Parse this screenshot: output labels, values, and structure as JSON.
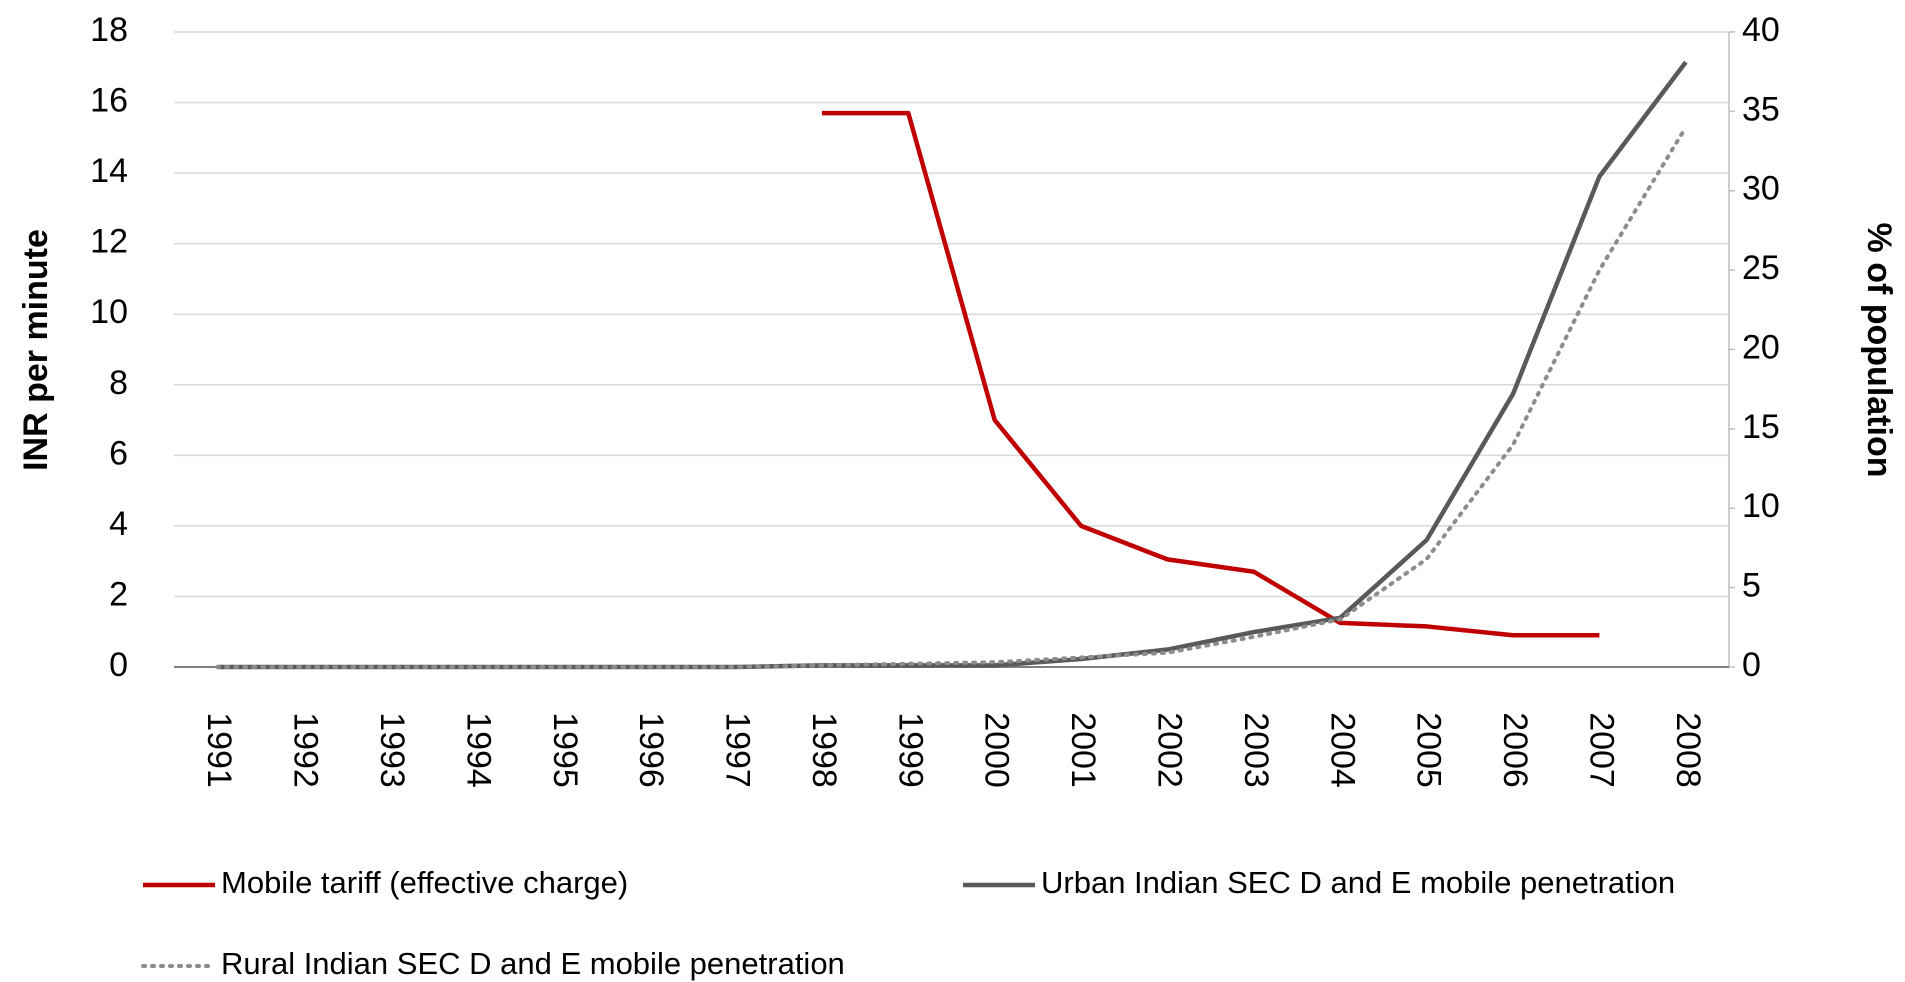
{
  "chart_data": {
    "type": "line",
    "y_label": "INR per minute",
    "y2_label": "% of  population",
    "categories": [
      "1991",
      "1992",
      "1993",
      "1994",
      "1995",
      "1996",
      "1997",
      "1998",
      "1999",
      "2000",
      "2001",
      "2002",
      "2003",
      "2004",
      "2005",
      "2006",
      "2007",
      "2008"
    ],
    "series": [
      {
        "name": "Mobile tariff (effective charge)",
        "color": "#c00000",
        "style": "solid",
        "axis": "y",
        "values": [
          null,
          null,
          null,
          null,
          null,
          null,
          null,
          15.7,
          15.7,
          7.0,
          4.0,
          3.05,
          2.7,
          1.25,
          1.15,
          0.9,
          0.9,
          null
        ]
      },
      {
        "name": "Urban Indian SEC D and E mobile penetration",
        "color": "#595959",
        "style": "solid",
        "axis": "y2",
        "values": [
          0,
          0,
          0,
          0,
          0,
          0,
          0,
          0.1,
          0.1,
          0.1,
          0.5,
          1.1,
          2.2,
          3.1,
          8.0,
          17.2,
          30.9,
          38.1
        ]
      },
      {
        "name": "Rural Indian SEC D and E mobile penetration",
        "color": "#8c8c8c",
        "style": "dotted",
        "axis": "y2",
        "values": [
          0,
          0,
          0,
          0,
          0,
          0,
          0,
          0.1,
          0.2,
          0.3,
          0.6,
          0.9,
          1.9,
          3.0,
          6.8,
          14.0,
          25.0,
          34.0
        ]
      }
    ],
    "ylim": [
      0,
      18
    ],
    "yticks": [
      0,
      2,
      4,
      6,
      8,
      10,
      12,
      14,
      16,
      18
    ],
    "y2lim": [
      0,
      40
    ],
    "y2ticks": [
      0,
      5,
      10,
      15,
      20,
      25,
      30,
      35,
      40
    ],
    "grid": true,
    "legend": "bottom"
  }
}
